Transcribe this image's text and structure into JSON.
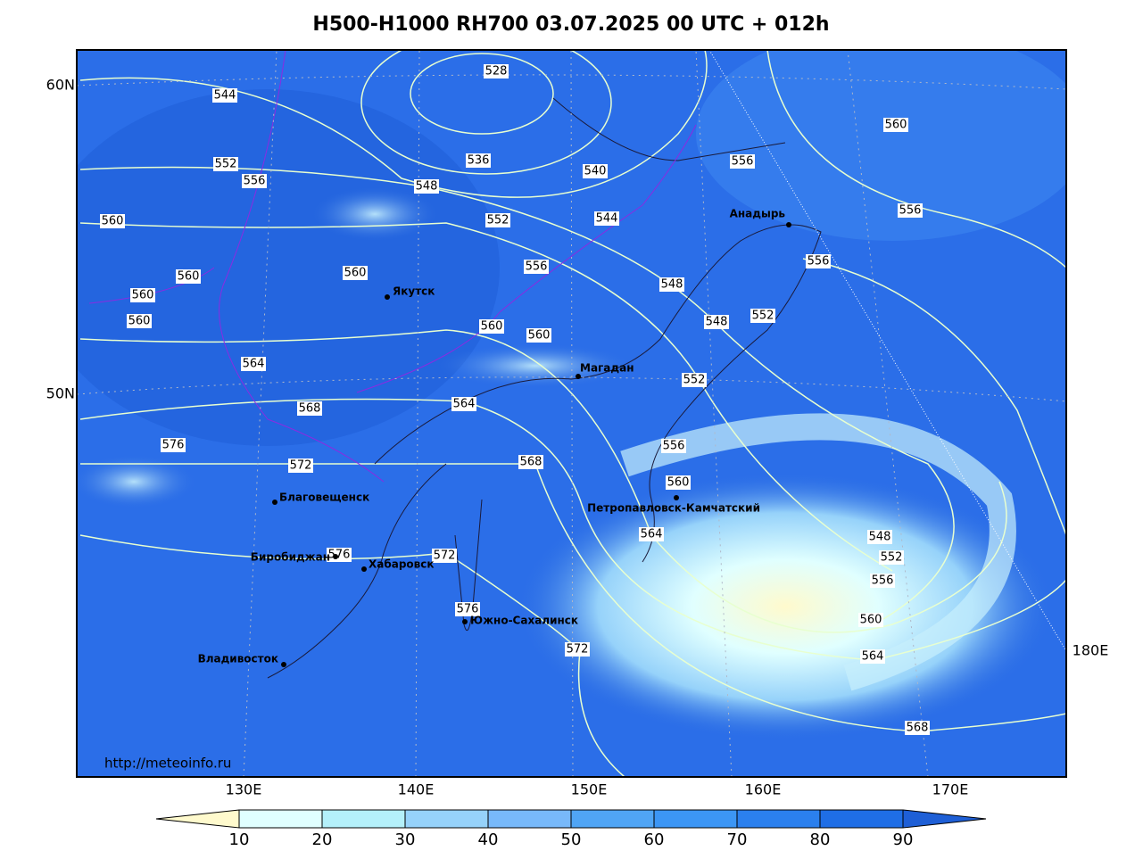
{
  "header": {
    "title": "H500-H1000 RH700 03.07.2025 00 UTC + 012h"
  },
  "map": {
    "lat_labels": [
      "60N",
      "50N"
    ],
    "lon_labels": [
      "130E",
      "140E",
      "150E",
      "160E",
      "170E",
      "180E"
    ],
    "cities": [
      "Якутск",
      "Магадан",
      "Анадырь",
      "Благовещенск",
      "Биробиджан",
      "Хабаровск",
      "Петропавловск-Камчатский",
      "Южно-Сахалинск",
      "Владивосток"
    ],
    "contour_labels": [
      528,
      536,
      540,
      544,
      544,
      548,
      548,
      548,
      548,
      552,
      552,
      552,
      552,
      552,
      556,
      556,
      556,
      556,
      556,
      556,
      556,
      560,
      560,
      560,
      560,
      560,
      560,
      560,
      560,
      560,
      560,
      564,
      564,
      564,
      564,
      568,
      568,
      568,
      572,
      572,
      572,
      576,
      576,
      576
    ],
    "source": "http://meteoinfo.ru"
  },
  "colorbar": {
    "ticks": [
      10,
      20,
      30,
      40,
      50,
      60,
      70,
      80,
      90
    ]
  }
}
